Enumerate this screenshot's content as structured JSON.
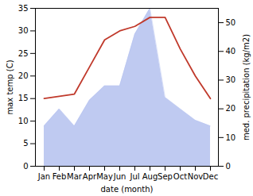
{
  "chart_data": {
    "type": "line",
    "categories": [
      "Jan",
      "Feb",
      "Mar",
      "Apr",
      "May",
      "Jun",
      "Jul",
      "Aug",
      "Sep",
      "Oct",
      "Nov",
      "Dec"
    ],
    "xlabel": "date (month)",
    "ylabel": "max temp (C)",
    "y2label": "med. precipitation (kg/m2)",
    "ylim": [
      0,
      35
    ],
    "yticks": [
      0,
      5,
      10,
      15,
      20,
      25,
      30,
      35
    ],
    "y2lim": [
      0,
      55
    ],
    "y2ticks": [
      0,
      10,
      20,
      30,
      40,
      50
    ],
    "grid": false,
    "series": [
      {
        "type": "area",
        "axis": "y2",
        "color": "#b8c4f0",
        "values": [
          14,
          20,
          14,
          23,
          28,
          28,
          46,
          55,
          24,
          20,
          16,
          14
        ]
      },
      {
        "type": "line",
        "color": "#c0392b",
        "values": [
          15,
          15.5,
          16,
          22,
          28,
          30,
          31,
          33,
          33,
          26,
          20,
          15
        ]
      }
    ]
  }
}
